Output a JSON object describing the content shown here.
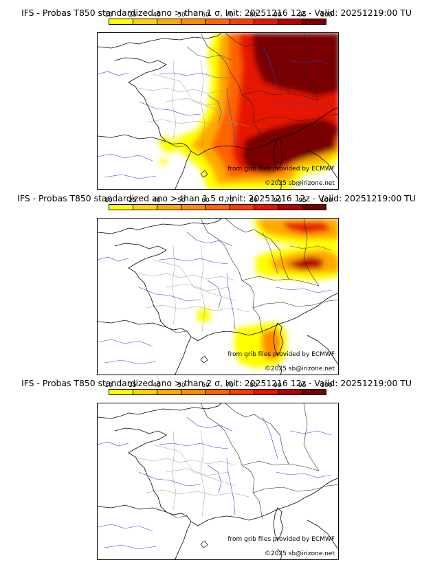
{
  "colorbar": {
    "labels": [
      "10",
      "25",
      "40",
      "50",
      "60",
      "70",
      "80",
      "90",
      "95",
      "100"
    ],
    "colors": [
      "#ffff00",
      "#ffd200",
      "#ffaa00",
      "#ff8c00",
      "#ff6400",
      "#ff3c00",
      "#e61400",
      "#b40000",
      "#780000"
    ]
  },
  "credits": {
    "source": "from grib files provided by ECMWF",
    "copyright": "©2025 sb@irizone.net"
  },
  "panels": [
    {
      "title": "IFS - Probas T850  standardized ano > than 1 σ, Init: 20251216 12z - Valid: 20251219:00 TU"
    },
    {
      "title": "IFS - Probas T850  standardized ano > than 1.5 σ, Init: 20251216 12z - Valid: 20251219:00 TU"
    },
    {
      "title": "IFS - Probas T850  standardized ano > than 2 σ, Init: 20251216 12z - Valid: 20251219:00 TU"
    }
  ]
}
